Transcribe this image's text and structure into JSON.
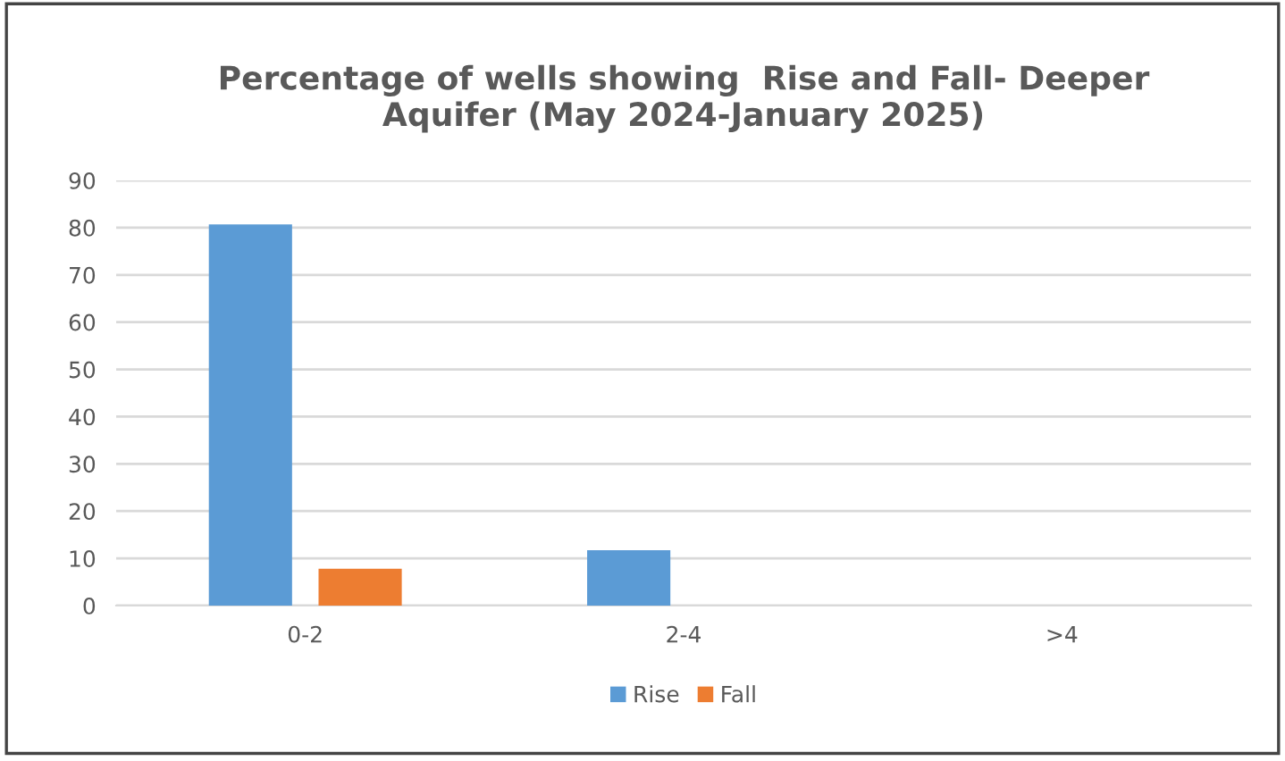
{
  "chart_data": {
    "type": "bar",
    "title": "Percentage of wells showing  Rise and Fall- Deeper\nAquifer (May 2024-January 2025)",
    "categories": [
      "0-2",
      "2-4",
      ">4"
    ],
    "series": [
      {
        "name": "Rise",
        "color": "#5b9bd5",
        "values": [
          80.7,
          11.7,
          0
        ]
      },
      {
        "name": "Fall",
        "color": "#ed7d31",
        "values": [
          7.8,
          0,
          0
        ]
      }
    ],
    "ylim": [
      0,
      90
    ],
    "yticks": [
      0,
      10,
      20,
      30,
      40,
      50,
      60,
      70,
      80,
      90
    ],
    "grid": "y",
    "legend": "bottom"
  }
}
